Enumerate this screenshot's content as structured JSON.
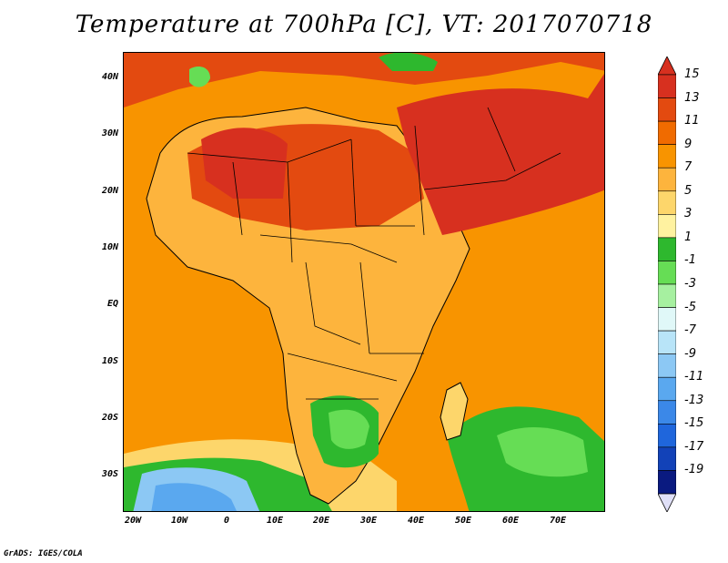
{
  "title": "Temperature at 700hPa [C], VT: 2017070718",
  "credit": "GrADS: IGES/COLA",
  "lat_ticks": [
    "40N",
    "30N",
    "20N",
    "10N",
    "EQ",
    "10S",
    "20S",
    "30S"
  ],
  "lon_ticks": [
    "20W",
    "10W",
    "0",
    "10E",
    "20E",
    "30E",
    "40E",
    "50E",
    "60E",
    "70E"
  ],
  "colorbar": {
    "labels": [
      "15",
      "13",
      "11",
      "9",
      "7",
      "5",
      "3",
      "1",
      "-1",
      "-3",
      "-5",
      "-7",
      "-9",
      "-11",
      "-13",
      "-15",
      "-17",
      "-19"
    ],
    "colors": [
      "#d7301f",
      "#e34a10",
      "#f06b00",
      "#f89400",
      "#fdb43d",
      "#fdd66b",
      "#fff2a0",
      "#2eb82e",
      "#66dd55",
      "#a6f0a0",
      "#e0f8f8",
      "#b8e4f8",
      "#8cc8f4",
      "#5aa8ef",
      "#3b88e8",
      "#1f66dc",
      "#1242b8",
      "#0a1a80"
    ],
    "top_arrow_color": "#d7301f",
    "bottom_arrow_color": "#e0e0f8"
  },
  "map": {
    "ocean_color": "#f89400",
    "hot_color": "#e34a10",
    "hottest_color": "#d7301f",
    "mild_color": "#fdb43d",
    "cool_color": "#fdd66b",
    "green_color": "#2eb82e",
    "lightgreen_color": "#66dd55",
    "blue_color": "#5aa8ef",
    "lightblue_color": "#8cc8f4",
    "border_color": "#000000"
  }
}
